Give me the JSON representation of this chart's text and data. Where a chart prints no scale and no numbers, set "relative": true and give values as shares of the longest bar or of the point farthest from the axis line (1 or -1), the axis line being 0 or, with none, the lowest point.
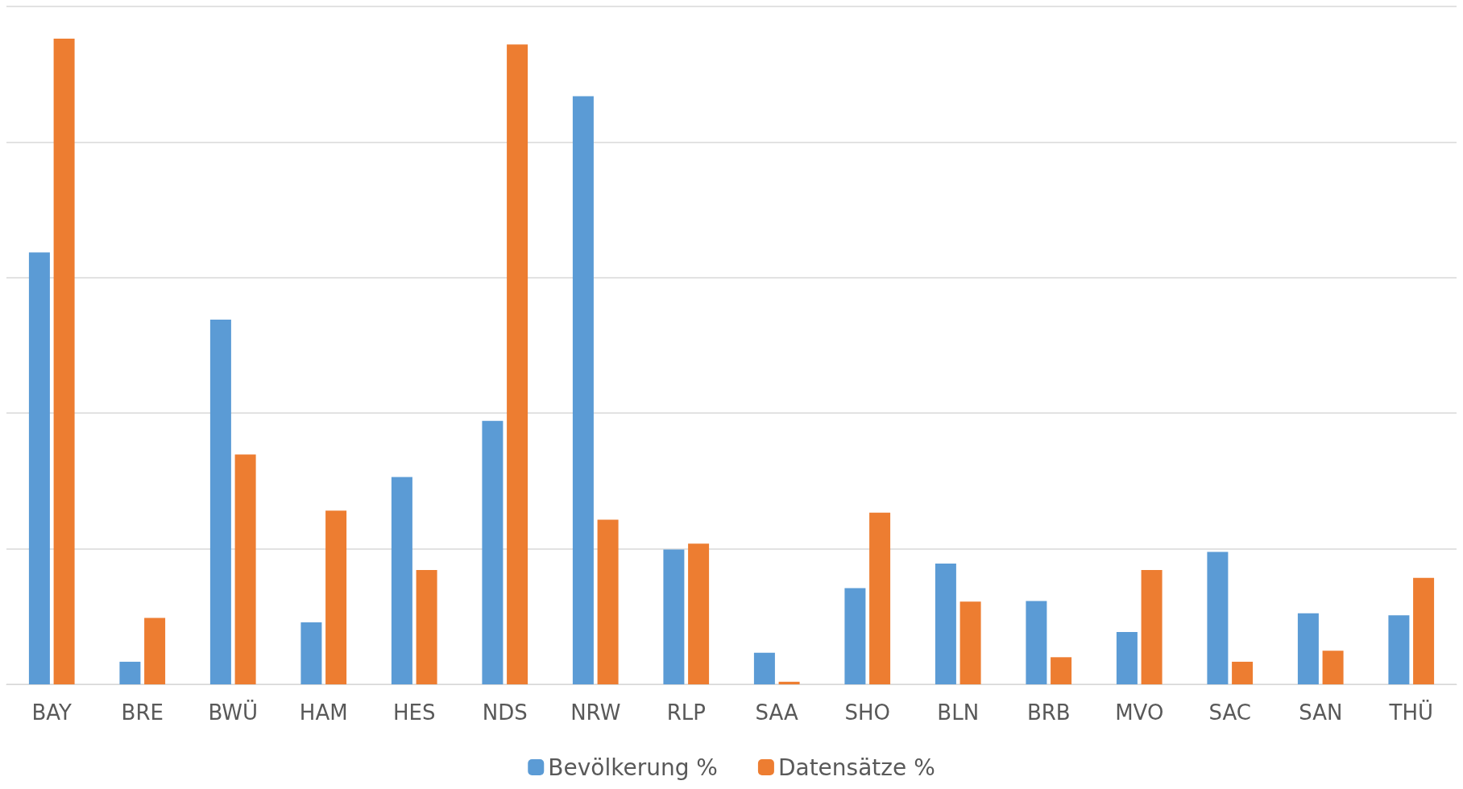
{
  "chart_data": {
    "type": "bar",
    "relative": true,
    "grid": "y",
    "legend": "bottom",
    "categories": [
      "BAY",
      "BRE",
      "BWÜ",
      "HAM",
      "HES",
      "NDS",
      "NRW",
      "RLP",
      "SAA",
      "SHO",
      "BLN",
      "BRB",
      "MVO",
      "SAC",
      "SAN",
      "THÜ"
    ],
    "series": [
      {
        "name": "Bevölkerung %",
        "color": "#5b9bd5",
        "values": [
          0.669,
          0.035,
          0.565,
          0.096,
          0.321,
          0.408,
          0.911,
          0.209,
          0.049,
          0.149,
          0.187,
          0.129,
          0.081,
          0.205,
          0.11,
          0.107
        ]
      },
      {
        "name": "Datensätze %",
        "color": "#ed7d31",
        "values": [
          1,
          0.103,
          0.356,
          0.269,
          0.177,
          0.991,
          0.255,
          0.218,
          0.004,
          0.266,
          0.128,
          0.042,
          0.177,
          0.035,
          0.052,
          0.165
        ]
      }
    ]
  }
}
